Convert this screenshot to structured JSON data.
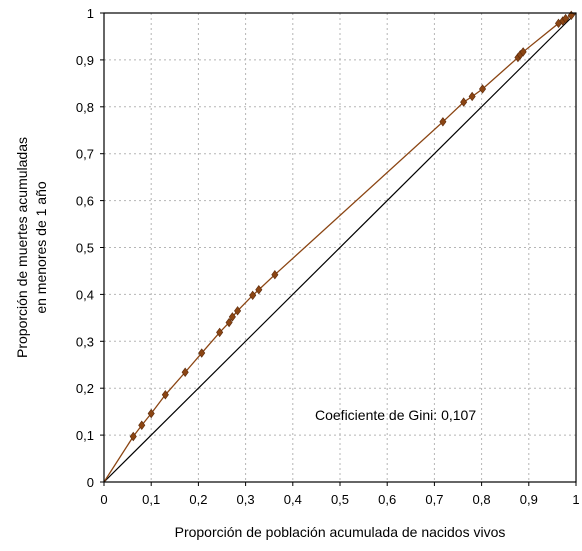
{
  "chart_data": {
    "type": "line",
    "title": "",
    "xlabel": "Proporción de población acumulada de nacidos vivos",
    "ylabel_lines": [
      "Proporción de muertes acumuladas",
      "en menores de 1 año"
    ],
    "xlim": [
      0,
      1
    ],
    "ylim": [
      0,
      1
    ],
    "x_ticks": [
      "0",
      "0,1",
      "0,2",
      "0,3",
      "0,4",
      "0,5",
      "0,6",
      "0,7",
      "0,8",
      "0,9",
      "1"
    ],
    "y_ticks": [
      "0",
      "0,1",
      "0,2",
      "0,3",
      "0,4",
      "0,5",
      "0,6",
      "0,7",
      "0,8",
      "0,9",
      "1"
    ],
    "grid": true,
    "grid_style": "dotted",
    "annotation": "Coeficiente de Gini: 0,107",
    "series": [
      {
        "kind": "lorenz-curve",
        "color": "#8B4513",
        "marker": "diamond",
        "points": [
          [
            0,
            0
          ],
          [
            0.062,
            0.097
          ],
          [
            0.08,
            0.121
          ],
          [
            0.1,
            0.146
          ],
          [
            0.13,
            0.186
          ],
          [
            0.172,
            0.234
          ],
          [
            0.207,
            0.275
          ],
          [
            0.245,
            0.319
          ],
          [
            0.265,
            0.34
          ],
          [
            0.272,
            0.352
          ],
          [
            0.283,
            0.365
          ],
          [
            0.315,
            0.398
          ],
          [
            0.328,
            0.41
          ],
          [
            0.362,
            0.442
          ],
          [
            0.718,
            0.768
          ],
          [
            0.762,
            0.81
          ],
          [
            0.78,
            0.822
          ],
          [
            0.802,
            0.838
          ],
          [
            0.877,
            0.905
          ],
          [
            0.882,
            0.911
          ],
          [
            0.888,
            0.917
          ],
          [
            0.963,
            0.978
          ],
          [
            0.972,
            0.983
          ],
          [
            0.978,
            0.988
          ],
          [
            0.99,
            0.995
          ],
          [
            1,
            1
          ]
        ]
      },
      {
        "kind": "equality-line",
        "color": "#000000",
        "points": [
          [
            0,
            0
          ],
          [
            1,
            1
          ]
        ]
      }
    ]
  }
}
